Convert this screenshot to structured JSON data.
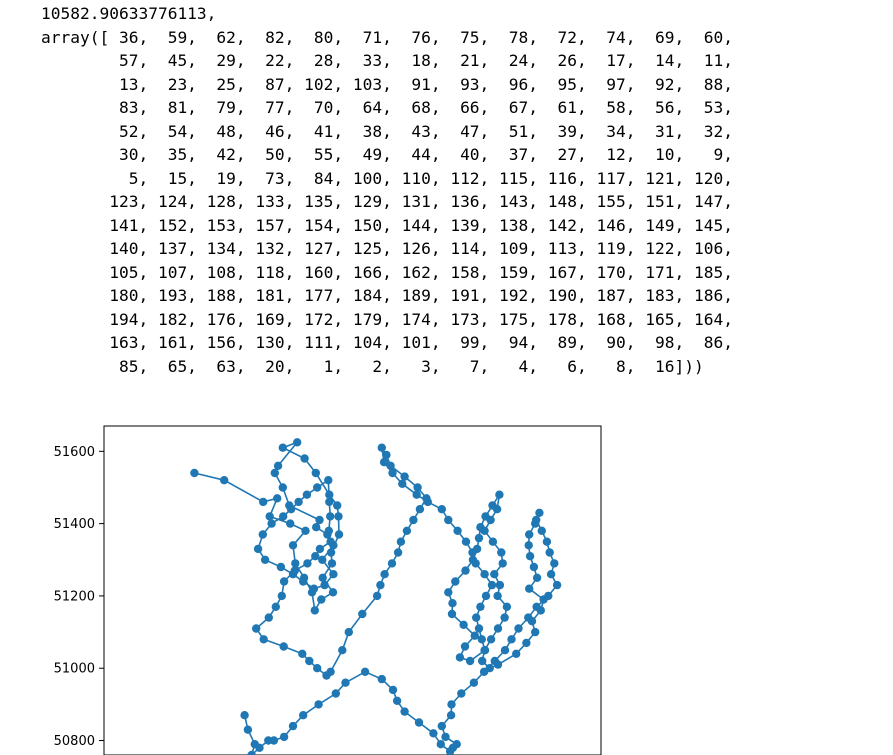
{
  "cell_output": {
    "text_lines": [
      "10582.90633776113,",
      "array([ 36,  59,  62,  82,  80,  71,  76,  75,  78,  72,  74,  69,  60,",
      "        57,  45,  29,  22,  28,  33,  18,  21,  24,  26,  17,  14,  11,",
      "        13,  23,  25,  87, 102, 103,  91,  93,  96,  95,  97,  92,  88,",
      "        83,  81,  79,  77,  70,  64,  68,  66,  67,  61,  58,  56,  53,",
      "        52,  54,  48,  46,  41,  38,  43,  47,  51,  39,  34,  31,  32,",
      "        30,  35,  42,  50,  55,  49,  44,  40,  37,  27,  12,  10,   9,",
      "         5,  15,  19,  73,  84, 100, 110, 112, 115, 116, 117, 121, 120,",
      "       123, 124, 128, 133, 135, 129, 131, 136, 143, 148, 155, 151, 147,",
      "       141, 152, 153, 157, 154, 150, 144, 139, 138, 142, 146, 149, 145,",
      "       140, 137, 134, 132, 127, 125, 126, 114, 109, 113, 119, 122, 106,",
      "       105, 107, 108, 118, 160, 166, 162, 158, 159, 167, 170, 171, 185,",
      "       180, 193, 188, 181, 177, 184, 189, 191, 192, 190, 187, 183, 186,",
      "       194, 182, 176, 169, 172, 179, 174, 173, 175, 178, 168, 165, 164,",
      "       163, 161, 156, 130, 111, 104, 101,  99,  94,  89,  90,  98,  86,",
      "        85,  65,  63,  20,   1,   2,   3,   7,   4,   6,   8,  16]))"
    ]
  },
  "chart_data": {
    "type": "line",
    "markers": true,
    "title": "",
    "xlabel": "",
    "ylabel": "",
    "ylim": [
      50760,
      51670
    ],
    "xlim": [
      0,
      100
    ],
    "yticks": [
      50800,
      51000,
      51200,
      51400,
      51600
    ],
    "ytick_labels": [
      "50800",
      "51000",
      "51200",
      "51400",
      "51600"
    ],
    "xticks": [],
    "grid": false,
    "line_color": "#1f77b4",
    "series": [
      {
        "x": [
          16.0,
          22.4,
          30.8,
          33.8,
          32.2,
          36.6,
          39.9,
          37.2,
          37.7,
          39.6,
          41.3,
          41.9,
          43.3,
          45.8,
          43.6,
          45.6,
          45.4,
          47.1,
          47.0,
          46.7,
          45.0,
          42.1,
          39.7,
          35.0,
          38.1,
          34.0,
          33.3,
          35.0,
          36.4,
          42.9,
          42.2,
          44.6,
          45.9,
          43.5,
          45.9,
          44.0,
          41.7,
          39.4,
          37.2,
          34.6,
          31.2,
          29.7,
          30.7,
          32.6,
          35.1,
          36.8,
          38.4,
          40.2,
          42.4,
          44.8,
          45.0,
          45.2,
          44.9,
          45.3,
          43.0,
          42.0,
          40.3,
          37.6,
          35.3,
          34.8,
          33.5,
          32.0,
          29.3,
          30.9,
          35.2,
          39.2,
          40.7,
          42.4,
          44.4,
          45.3,
          47.8,
          49.2,
          52.1,
          55.3,
          56.0,
          56.9,
          58.5,
          59.8,
          60.4,
          61.7,
          63.1,
          64.5,
          65.9,
          64.0,
          61.2,
          58.2,
          57.3,
          56.3,
          56.8,
          58.6,
          60.7,
          63.8,
          66.2,
          69.2,
          70.6,
          72.6,
          74.4,
          75.8,
          76.5,
          78.4,
          80.0,
          78.7,
          77.5,
          76.6,
          77.2,
          77.8,
          78.5,
          75.3,
          73.1,
          74.2,
          76.3,
          73.9,
          71.4,
          71.5,
          70.6,
          72.1,
          74.3,
          75.9,
          76.8,
          77.2,
          77.5,
          78.6,
          80.1,
          81.6,
          81.1,
          79.7,
          78.4,
          80.2,
          82.0,
          82.3,
          80.5,
          81.7,
          81.2,
          83.2,
          82.7,
          81.3,
          79.8,
          78.4,
          77.9,
          79.5,
          81.3,
          85.2,
          87.4,
          89.3,
          88.6,
          90.5,
          91.1,
          88.0,
          89.7,
          89.0,
          88.2,
          87.9,
          88.0,
          89.3,
          90.2,
          89.5,
          90.7,
          91.8,
          92.4,
          93.4,
          92.7,
          94.0,
          92.1,
          89.6,
          87.8,
          85.7,
          84.2,
          82.8,
          80.6,
          78.3,
          76.1,
          73.4,
          71.3,
          71.2,
          69.2,
          70.0,
          72.4,
          71.6,
          71.0,
          69.0,
          67.4,
          64.3,
          61.2,
          59.6,
          58.7,
          56.3,
          52.7,
          48.5,
          46.4,
          42.7,
          39.4,
          37.2,
          35.3,
          33.1,
          31.9,
          30.0,
          28.3,
          29.0,
          27.5,
          26.8
        ],
        "y": [
          51540,
          51520,
          51460,
          51470,
          51420,
          51400,
          51380,
          51340,
          51290,
          51250,
          51210,
          51160,
          51190,
          51210,
          51250,
          51290,
          51320,
          51370,
          51420,
          51450,
          51480,
          51540,
          51580,
          51610,
          51625,
          51560,
          51540,
          51500,
          51450,
          51410,
          51390,
          51370,
          51340,
          51300,
          51260,
          51230,
          51220,
          51240,
          51260,
          51280,
          51300,
          51330,
          51370,
          51400,
          51420,
          51440,
          51460,
          51480,
          51500,
          51520,
          51460,
          51420,
          51380,
          51350,
          51330,
          51310,
          51290,
          51270,
          51240,
          51200,
          51170,
          51140,
          51110,
          51080,
          51060,
          51040,
          51020,
          51000,
          50980,
          50990,
          51050,
          51100,
          51150,
          51200,
          51230,
          51260,
          51290,
          51320,
          51350,
          51380,
          51410,
          51440,
          51470,
          51500,
          51530,
          51560,
          51590,
          51610,
          51570,
          51540,
          51510,
          51480,
          51460,
          51440,
          51410,
          51380,
          51350,
          51320,
          51290,
          51260,
          51230,
          51200,
          51170,
          51140,
          51110,
          51080,
          51050,
          51020,
          51030,
          51060,
          51090,
          51120,
          51150,
          51180,
          51210,
          51240,
          51270,
          51300,
          51330,
          51360,
          51390,
          51420,
          51450,
          51480,
          51440,
          51410,
          51380,
          51350,
          51320,
          51290,
          51260,
          51230,
          51200,
          51170,
          51140,
          51110,
          51080,
          51050,
          51020,
          51000,
          51010,
          51040,
          51070,
          51100,
          51130,
          51160,
          51190,
          51220,
          51250,
          51280,
          51310,
          51340,
          51370,
          51400,
          51430,
          51410,
          51380,
          51350,
          51320,
          51290,
          51260,
          51230,
          51200,
          51170,
          51140,
          51110,
          51080,
          51050,
          51020,
          50990,
          50960,
          50930,
          50900,
          50870,
          50840,
          50810,
          50790,
          50780,
          50770,
          50790,
          50820,
          50850,
          50880,
          50910,
          50940,
          50970,
          50990,
          50960,
          50930,
          50900,
          50870,
          50840,
          50810,
          50800,
          50800,
          50780,
          50760,
          50790,
          50830,
          50870
        ]
      }
    ]
  }
}
